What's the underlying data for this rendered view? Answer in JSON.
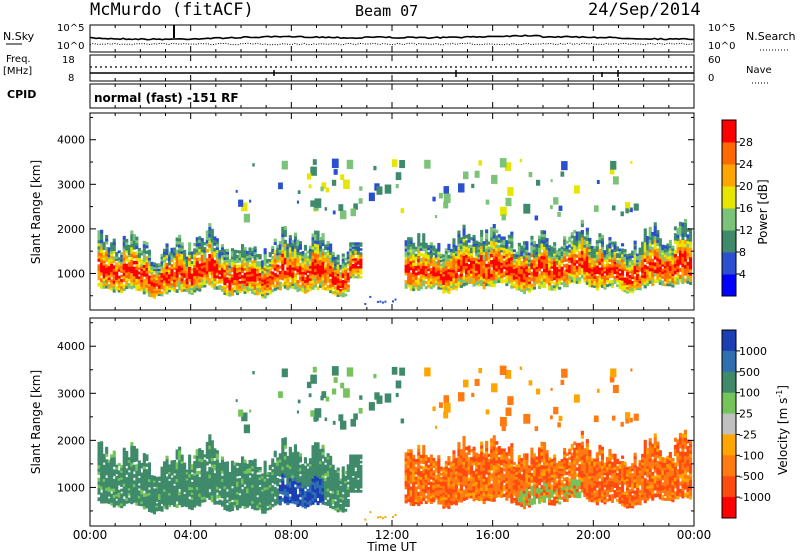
{
  "header": {
    "site": "McMurdo (fitACF)",
    "beam": "Beam 07",
    "date": "24/Sep/2014"
  },
  "noise_panel": {
    "left_label": "N.Sky",
    "right_label": "N.Search",
    "left_ticks": [
      "10^5",
      "10^0"
    ],
    "right_ticks": [
      "10^5",
      "10^0"
    ]
  },
  "freq_panel": {
    "left_label_line1": "Freq.",
    "left_label_line2": "[MHz]",
    "left_ticks": [
      "18",
      "8"
    ],
    "right_label": "Nave",
    "right_ticks": [
      "60",
      "0"
    ]
  },
  "cpid": {
    "label": "CPID",
    "mode_text": "normal (fast) -151 RF"
  },
  "time_axis": {
    "label": "Time UT",
    "ticks": [
      "00:00",
      "04:00",
      "08:00",
      "12:00",
      "16:00",
      "20:00",
      "00:00"
    ]
  },
  "colors": {
    "power_scale": [
      "#0000ff",
      "#2a4fd0",
      "#3f8a6a",
      "#7cc37a",
      "#e6e600",
      "#ffa500",
      "#ff6a00",
      "#ff0000"
    ],
    "velocity_scale": [
      "#1b3fb3",
      "#2f6fb0",
      "#3f8a6a",
      "#74c35b",
      "#c0c0c0",
      "#ffa500",
      "#ff7a10",
      "#ff4a10",
      "#ff0000"
    ]
  },
  "chart_data": [
    {
      "type": "heatmap",
      "name": "power",
      "ylabel": "Slant Range [km]",
      "xlabel": "",
      "xlim": [
        0,
        24
      ],
      "ylim": [
        180,
        4600
      ],
      "yticks": [
        "1000",
        "2000",
        "3000",
        "4000"
      ],
      "colorbar": {
        "label": "Power [dB]",
        "ticks": [
          "4",
          "8",
          "12",
          "16",
          "20",
          "24",
          "28"
        ],
        "range": [
          0,
          32
        ]
      },
      "description_regions": [
        {
          "start_h": 0.3,
          "end_h": 10.3,
          "range_low_km": 500,
          "range_high_km": 1700,
          "peak_db": 28
        },
        {
          "start_h": 12.5,
          "end_h": 23.9,
          "range_low_km": 600,
          "range_high_km": 2200,
          "peak_db": 28
        }
      ]
    },
    {
      "type": "heatmap",
      "name": "velocity",
      "ylabel": "Slant Range [km]",
      "xlabel": "Time UT",
      "xlim": [
        0,
        24
      ],
      "ylim": [
        180,
        4600
      ],
      "yticks": [
        "1000",
        "2000",
        "3000",
        "4000"
      ],
      "colorbar": {
        "label": "Velocity [m s^-1]",
        "ticks": [
          "1000",
          "500",
          "100",
          "25",
          "-25",
          "-100",
          "-500",
          "-1000"
        ]
      },
      "description_regions": [
        {
          "start_h": 0.3,
          "end_h": 10.8,
          "sign": "positive (toward)",
          "dominant_ms": 100
        },
        {
          "start_h": 12.6,
          "end_h": 23.9,
          "sign": "negative (away)",
          "dominant_ms": -100
        }
      ]
    }
  ]
}
